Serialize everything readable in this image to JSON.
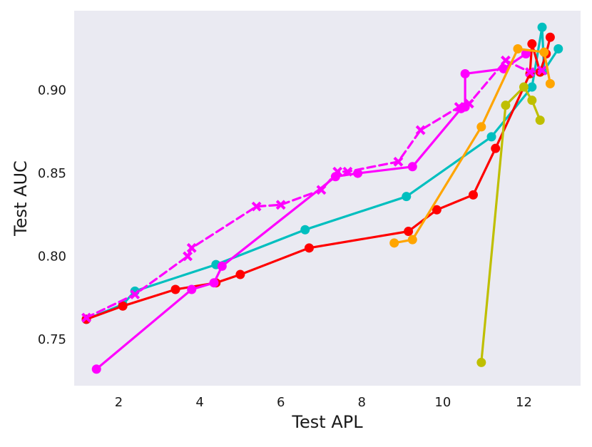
{
  "chart_data": {
    "type": "line",
    "title": "",
    "xlabel": "Test APL",
    "ylabel": "Test AUC",
    "xlim": [
      0.9,
      13.4
    ],
    "ylim": [
      0.722,
      0.948
    ],
    "xticks": [
      2,
      4,
      6,
      8,
      10,
      12
    ],
    "yticks": [
      0.75,
      0.8,
      0.85,
      0.9
    ],
    "ytick_labels": [
      "0.75",
      "0.80",
      "0.85",
      "0.90"
    ],
    "xtick_labels": [
      "2",
      "4",
      "6",
      "8",
      "10",
      "12"
    ],
    "grid": false,
    "background": "#EAEAF2",
    "legend": "none",
    "series": [
      {
        "color": "#00BFBF",
        "marker": "circle",
        "dash": "solid",
        "points": [
          [
            1.2,
            0.762
          ],
          [
            2.1,
            0.771
          ],
          [
            2.4,
            0.779
          ],
          [
            4.4,
            0.795
          ],
          [
            6.6,
            0.816
          ],
          [
            9.1,
            0.836
          ],
          [
            11.2,
            0.872
          ],
          [
            12.2,
            0.902
          ],
          [
            12.45,
            0.938
          ],
          [
            12.5,
            0.912
          ],
          [
            12.85,
            0.925
          ]
        ]
      },
      {
        "color": "#FF0000",
        "marker": "circle",
        "dash": "solid",
        "points": [
          [
            1.2,
            0.762
          ],
          [
            2.1,
            0.77
          ],
          [
            3.4,
            0.78
          ],
          [
            4.4,
            0.784
          ],
          [
            5.0,
            0.789
          ],
          [
            6.7,
            0.805
          ],
          [
            9.15,
            0.815
          ],
          [
            9.85,
            0.828
          ],
          [
            10.75,
            0.837
          ],
          [
            11.3,
            0.865
          ],
          [
            12.15,
            0.91
          ],
          [
            12.2,
            0.928
          ],
          [
            12.4,
            0.911
          ],
          [
            12.55,
            0.922
          ],
          [
            12.65,
            0.932
          ]
        ]
      },
      {
        "color": "#FF00FF",
        "marker": "x",
        "dash": "dashed",
        "points": [
          [
            1.2,
            0.763
          ],
          [
            2.4,
            0.777
          ],
          [
            3.7,
            0.8
          ],
          [
            3.8,
            0.805
          ],
          [
            5.4,
            0.83
          ],
          [
            6.0,
            0.831
          ],
          [
            7.0,
            0.84
          ],
          [
            7.4,
            0.851
          ],
          [
            7.65,
            0.851
          ],
          [
            8.9,
            0.857
          ],
          [
            9.45,
            0.876
          ],
          [
            10.4,
            0.89
          ],
          [
            10.65,
            0.892
          ],
          [
            11.55,
            0.918
          ],
          [
            12.15,
            0.911
          ],
          [
            12.45,
            0.912
          ]
        ]
      },
      {
        "color": "#FF00FF",
        "marker": "circle",
        "dash": "solid",
        "points": [
          [
            1.45,
            0.732
          ],
          [
            3.8,
            0.78
          ],
          [
            4.35,
            0.784
          ],
          [
            4.55,
            0.794
          ],
          [
            7.35,
            0.848
          ],
          [
            7.9,
            0.85
          ],
          [
            9.25,
            0.854
          ],
          [
            10.45,
            0.889
          ],
          [
            10.55,
            0.89
          ],
          [
            10.55,
            0.91
          ],
          [
            11.5,
            0.913
          ],
          [
            12.05,
            0.922
          ]
        ]
      },
      {
        "color": "#FFA500",
        "marker": "circle",
        "dash": "solid",
        "points": [
          [
            8.8,
            0.808
          ],
          [
            9.25,
            0.81
          ],
          [
            10.95,
            0.878
          ],
          [
            11.85,
            0.925
          ],
          [
            12.5,
            0.923
          ],
          [
            12.65,
            0.904
          ]
        ]
      },
      {
        "color": "#BFBF00",
        "marker": "circle",
        "dash": "solid",
        "points": [
          [
            10.95,
            0.736
          ],
          [
            11.55,
            0.891
          ],
          [
            12.0,
            0.902
          ],
          [
            12.2,
            0.894
          ],
          [
            12.4,
            0.882
          ]
        ]
      }
    ]
  }
}
